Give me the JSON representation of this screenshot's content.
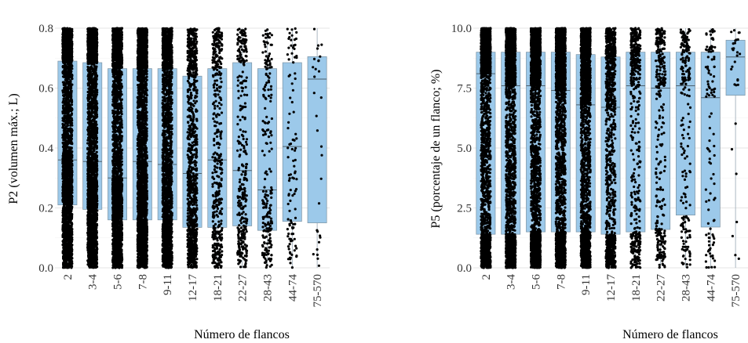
{
  "chart_data": [
    {
      "type": "box",
      "xlabel": "Número de flancos",
      "ylabel": "P2 (volumen máx.; L)",
      "categories": [
        "2",
        "3-4",
        "5-6",
        "7-8",
        "9-11",
        "12-17",
        "18-21",
        "22-27",
        "28-43",
        "44-74",
        "75-570"
      ],
      "ylim": [
        0.0,
        0.8
      ],
      "yticks": [
        0.0,
        0.2,
        0.4,
        0.6,
        0.8
      ],
      "ytick_labels": [
        "0.0",
        "0.2",
        "0.4",
        "0.6",
        "0.8"
      ],
      "grid": true,
      "box_color": "#9cc9ea",
      "point_color": "#000000",
      "boxes": [
        {
          "q1": 0.21,
          "median": 0.36,
          "q3": 0.69
        },
        {
          "q1": 0.195,
          "median": 0.355,
          "q3": 0.685
        },
        {
          "q1": 0.16,
          "median": 0.3,
          "q3": 0.665
        },
        {
          "q1": 0.16,
          "median": 0.355,
          "q3": 0.665
        },
        {
          "q1": 0.16,
          "median": 0.345,
          "q3": 0.665
        },
        {
          "q1": 0.135,
          "median": 0.315,
          "q3": 0.64
        },
        {
          "q1": 0.135,
          "median": 0.36,
          "q3": 0.665
        },
        {
          "q1": 0.14,
          "median": 0.325,
          "q3": 0.685
        },
        {
          "q1": 0.125,
          "median": 0.26,
          "q3": 0.665
        },
        {
          "q1": 0.155,
          "median": 0.405,
          "q3": 0.685
        },
        {
          "q1": 0.15,
          "median": 0.63,
          "q3": 0.705
        }
      ],
      "point_density": [
        2500,
        2500,
        2500,
        2500,
        2000,
        1000,
        450,
        320,
        220,
        110,
        30
      ]
    },
    {
      "type": "box",
      "xlabel": "Número de flancos",
      "ylabel": "P5 (porcentaje de un flanco; %)",
      "categories": [
        "2",
        "3-4",
        "5-6",
        "7-8",
        "9-11",
        "12-17",
        "18-21",
        "22-27",
        "28-43",
        "44-74",
        "75-570"
      ],
      "ylim": [
        0.0,
        10.0
      ],
      "yticks": [
        0.0,
        2.5,
        5.0,
        7.5,
        10.0
      ],
      "ytick_labels": [
        "0.0",
        "2.5",
        "5.0",
        "7.5",
        "10.0"
      ],
      "grid": true,
      "box_color": "#9cc9ea",
      "point_color": "#000000",
      "boxes": [
        {
          "q1": 1.4,
          "median": 8.1,
          "q3": 9.0
        },
        {
          "q1": 1.4,
          "median": 7.6,
          "q3": 9.0
        },
        {
          "q1": 1.5,
          "median": 7.6,
          "q3": 9.0
        },
        {
          "q1": 1.5,
          "median": 7.4,
          "q3": 9.0
        },
        {
          "q1": 1.5,
          "median": 6.8,
          "q3": 8.9
        },
        {
          "q1": 1.4,
          "median": 6.7,
          "q3": 8.8
        },
        {
          "q1": 1.5,
          "median": 7.6,
          "q3": 9.0
        },
        {
          "q1": 1.6,
          "median": 7.5,
          "q3": 9.0
        },
        {
          "q1": 2.2,
          "median": 7.6,
          "q3": 9.0
        },
        {
          "q1": 1.7,
          "median": 7.1,
          "q3": 9.0
        },
        {
          "q1": 7.2,
          "median": 8.8,
          "q3": 9.5
        }
      ],
      "point_density": [
        2500,
        2500,
        2500,
        2500,
        2000,
        1000,
        450,
        320,
        220,
        110,
        30
      ]
    }
  ]
}
